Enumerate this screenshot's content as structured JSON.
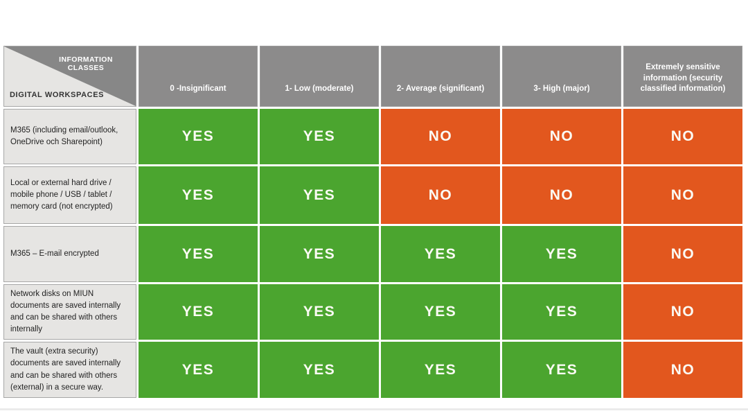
{
  "corner": {
    "top_label": "INFORMATION CLASSES",
    "bottom_label": "DIGITAL WORKSPACES"
  },
  "columns": [
    "0 -Insignificant",
    "1- Low (moderate)",
    "2- Average (significant)",
    "3- High (major)",
    "Extremely sensitive information (security classified information)"
  ],
  "rows": [
    {
      "label": "M365 (including email/outlook, OneDrive och Sharepoint)",
      "values": [
        "YES",
        "YES",
        "NO",
        "NO",
        "NO"
      ]
    },
    {
      "label": "Local or external hard drive / mobile phone / USB / tablet / memory card (not encrypted)",
      "values": [
        "YES",
        "YES",
        "NO",
        "NO",
        "NO"
      ]
    },
    {
      "label": "M365 – E-mail encrypted",
      "values": [
        "YES",
        "YES",
        "YES",
        "YES",
        "NO"
      ]
    },
    {
      "label": "Network disks on MIUN documents are saved internally and can be shared with others internally",
      "values": [
        "YES",
        "YES",
        "YES",
        "YES",
        "NO"
      ]
    },
    {
      "label": "The vault (extra security) documents are saved internally and can be shared with others (external) in a secure way.",
      "values": [
        "YES",
        "YES",
        "YES",
        "YES",
        "NO"
      ]
    }
  ],
  "colors": {
    "yes_green": "#4ba52f",
    "no_orange": "#e2571e",
    "header_gray": "#8c8b8b",
    "corner_dark_gray": "#878787",
    "label_bg": "#e6e5e3"
  }
}
